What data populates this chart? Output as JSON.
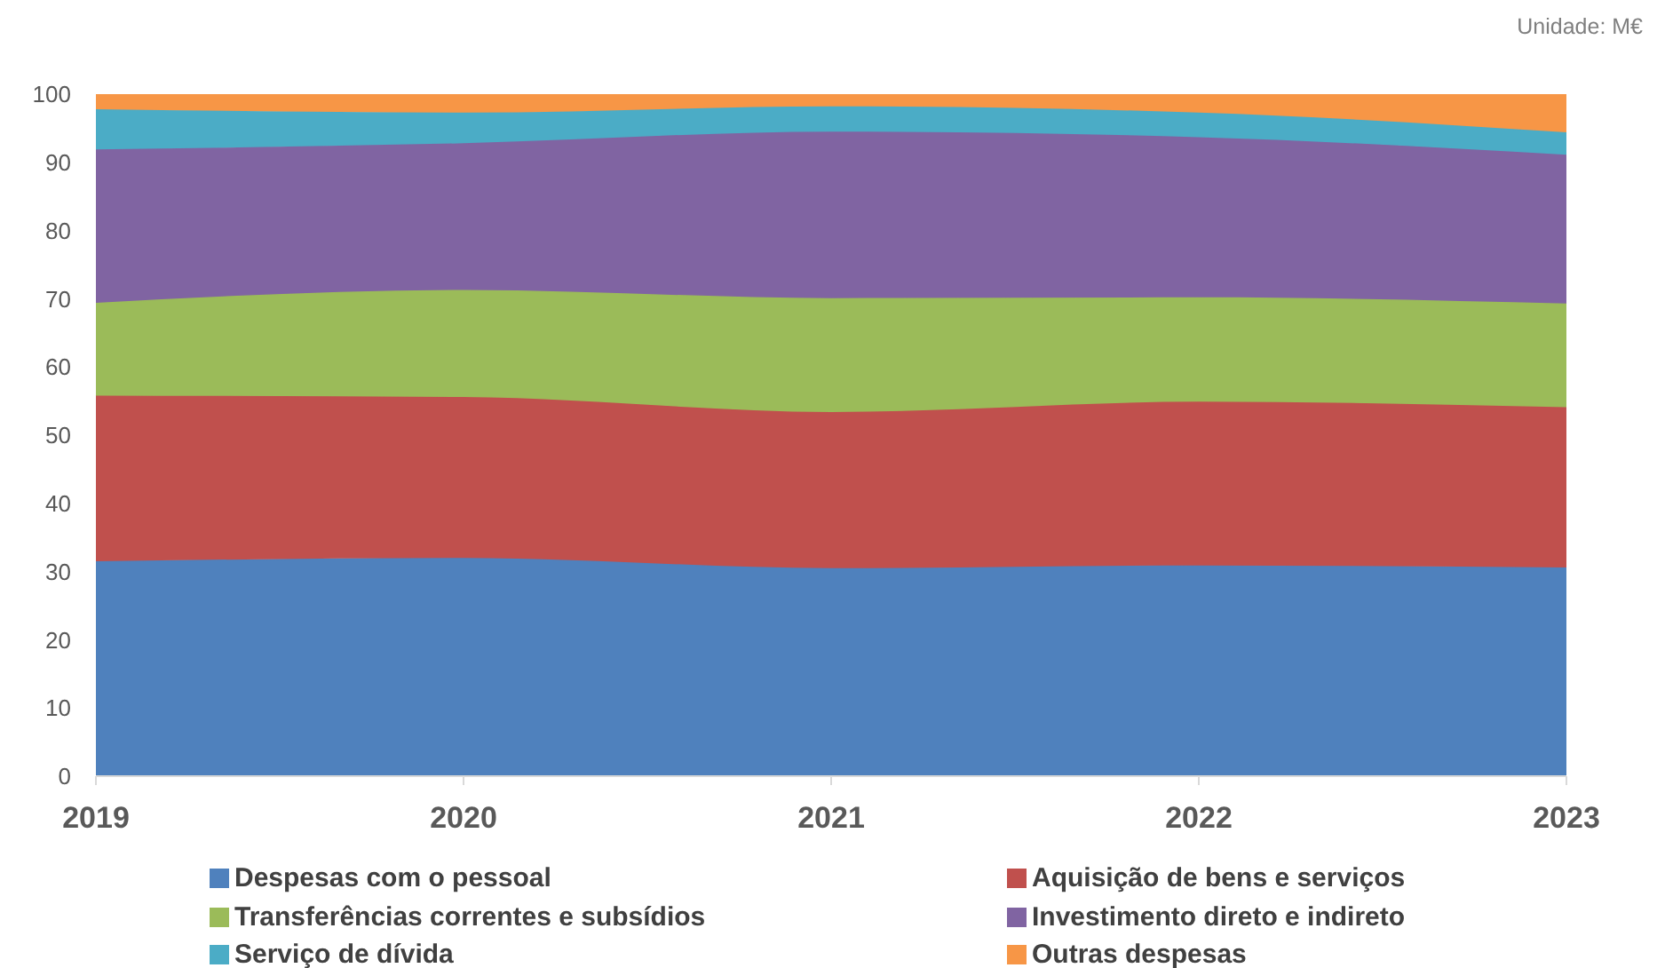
{
  "chart_data": {
    "type": "area",
    "stacked": true,
    "annotations": [
      "Unidade: M€"
    ],
    "categories": [
      "2019",
      "2020",
      "2021",
      "2022",
      "2023"
    ],
    "series": [
      {
        "name": "Despesas com o pessoal",
        "color": "#4f81bd",
        "values": [
          31.5,
          32.0,
          30.5,
          30.9,
          30.6
        ]
      },
      {
        "name": "Aquisição de bens e serviços",
        "color": "#c0504d",
        "values": [
          24.3,
          23.6,
          22.9,
          24.0,
          23.5
        ]
      },
      {
        "name": "Transferências correntes e subsídios",
        "color": "#9bbb59",
        "values": [
          13.6,
          15.7,
          16.7,
          15.3,
          15.2
        ]
      },
      {
        "name": "Investimento direto e indireto",
        "color": "#8064a2",
        "values": [
          22.5,
          21.5,
          24.4,
          23.5,
          21.8
        ]
      },
      {
        "name": "Serviço de dívida",
        "color": "#4bacc6",
        "values": [
          5.9,
          4.5,
          3.7,
          3.6,
          3.3
        ]
      },
      {
        "name": "Outras despesas",
        "color": "#f79646",
        "values": [
          2.2,
          2.7,
          1.8,
          2.7,
          5.6
        ]
      }
    ],
    "ylim": [
      0,
      100
    ],
    "yticks": [
      0,
      10,
      20,
      30,
      40,
      50,
      60,
      70,
      80,
      90,
      100
    ],
    "legend": "bottom"
  }
}
